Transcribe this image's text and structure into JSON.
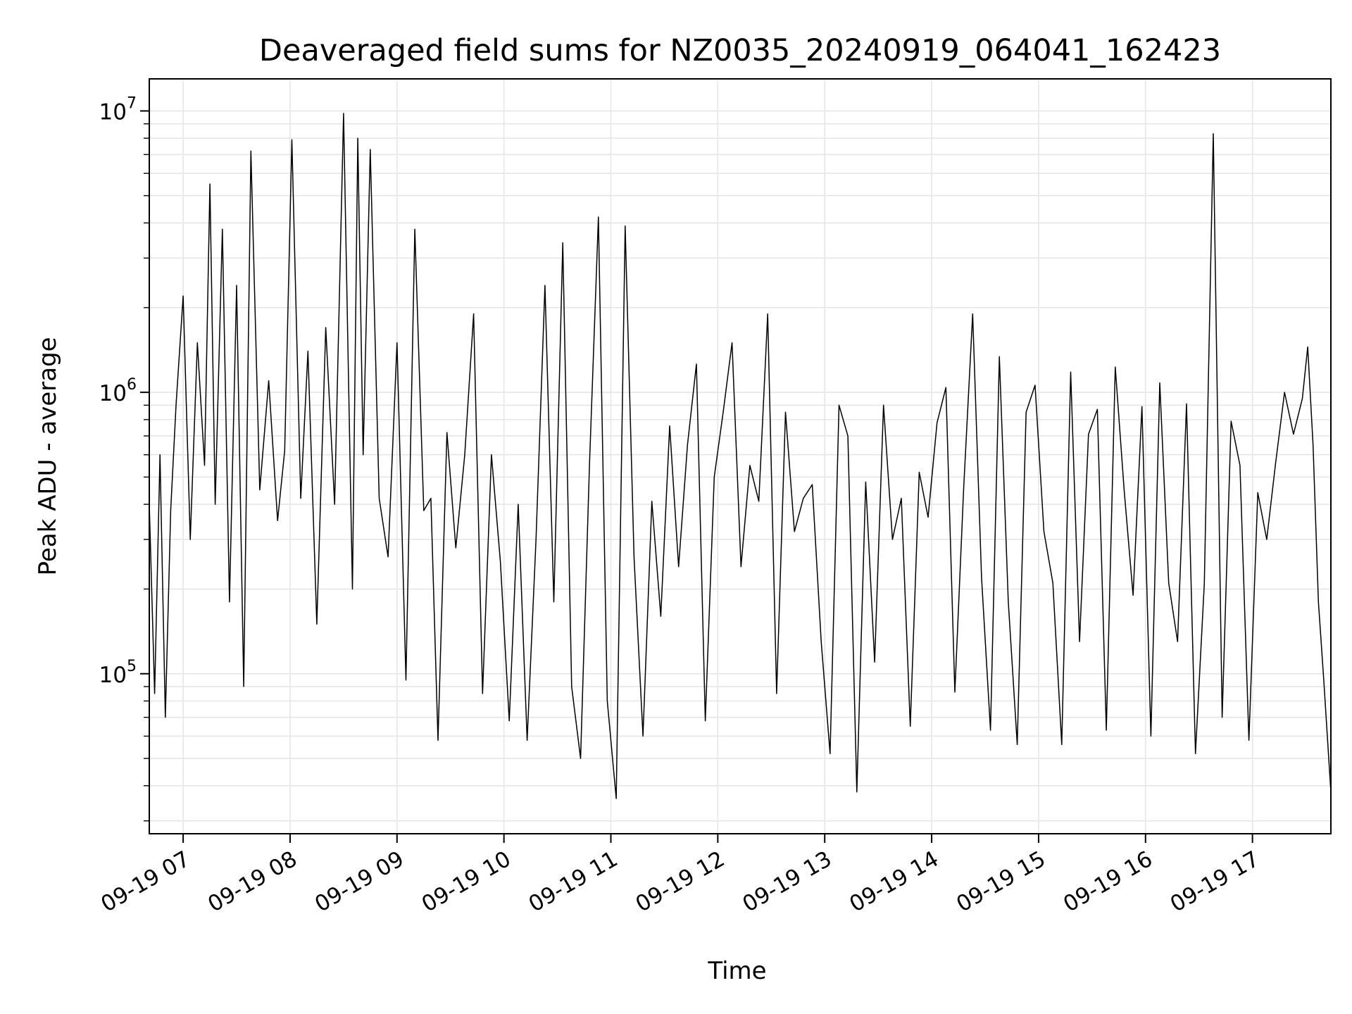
{
  "chart_data": {
    "type": "line",
    "title": "Deaveraged field sums for NZ0035_20240919_064041_162423",
    "xlabel": "Time",
    "ylabel": "Peak ADU - average",
    "yscale": "log",
    "ylim": [
      27000,
      13000000
    ],
    "xlim": [
      "2024-09-19 06:41",
      "2024-09-19 17:44"
    ],
    "grid": true,
    "line_color": "#000000",
    "grid_color": "#e6e6e6",
    "x_ticks": [
      {
        "label": "09-19 07",
        "value": "2024-09-19 07:00"
      },
      {
        "label": "09-19 08",
        "value": "2024-09-19 08:00"
      },
      {
        "label": "09-19 09",
        "value": "2024-09-19 09:00"
      },
      {
        "label": "09-19 10",
        "value": "2024-09-19 10:00"
      },
      {
        "label": "09-19 11",
        "value": "2024-09-19 11:00"
      },
      {
        "label": "09-19 12",
        "value": "2024-09-19 12:00"
      },
      {
        "label": "09-19 13",
        "value": "2024-09-19 13:00"
      },
      {
        "label": "09-19 14",
        "value": "2024-09-19 14:00"
      },
      {
        "label": "09-19 15",
        "value": "2024-09-19 15:00"
      },
      {
        "label": "09-19 16",
        "value": "2024-09-19 16:00"
      },
      {
        "label": "09-19 17",
        "value": "2024-09-19 17:00"
      }
    ],
    "y_ticks": [
      {
        "base": "10",
        "exp": "5",
        "value": 100000
      },
      {
        "base": "10",
        "exp": "6",
        "value": 1000000
      },
      {
        "base": "10",
        "exp": "7",
        "value": 10000000
      }
    ],
    "series": [
      {
        "x": [
          "2024-09-19 06:41",
          "2024-09-19 06:44",
          "2024-09-19 06:47",
          "2024-09-19 06:50",
          "2024-09-19 06:53",
          "2024-09-19 06:56",
          "2024-09-19 07:00",
          "2024-09-19 07:04",
          "2024-09-19 07:08",
          "2024-09-19 07:12",
          "2024-09-19 07:15",
          "2024-09-19 07:18",
          "2024-09-19 07:22",
          "2024-09-19 07:26",
          "2024-09-19 07:30",
          "2024-09-19 07:34",
          "2024-09-19 07:38",
          "2024-09-19 07:43",
          "2024-09-19 07:48",
          "2024-09-19 07:53",
          "2024-09-19 07:57",
          "2024-09-19 08:01",
          "2024-09-19 08:06",
          "2024-09-19 08:10",
          "2024-09-19 08:15",
          "2024-09-19 08:20",
          "2024-09-19 08:25",
          "2024-09-19 08:30",
          "2024-09-19 08:35",
          "2024-09-19 08:38",
          "2024-09-19 08:41",
          "2024-09-19 08:45",
          "2024-09-19 08:50",
          "2024-09-19 08:55",
          "2024-09-19 09:00",
          "2024-09-19 09:05",
          "2024-09-19 09:10",
          "2024-09-19 09:15",
          "2024-09-19 09:19",
          "2024-09-19 09:23",
          "2024-09-19 09:28",
          "2024-09-19 09:33",
          "2024-09-19 09:38",
          "2024-09-19 09:43",
          "2024-09-19 09:48",
          "2024-09-19 09:53",
          "2024-09-19 09:58",
          "2024-09-19 10:03",
          "2024-09-19 10:08",
          "2024-09-19 10:13",
          "2024-09-19 10:18",
          "2024-09-19 10:23",
          "2024-09-19 10:28",
          "2024-09-19 10:33",
          "2024-09-19 10:38",
          "2024-09-19 10:43",
          "2024-09-19 10:48",
          "2024-09-19 10:53",
          "2024-09-19 10:58",
          "2024-09-19 11:03",
          "2024-09-19 11:08",
          "2024-09-19 11:13",
          "2024-09-19 11:18",
          "2024-09-19 11:23",
          "2024-09-19 11:28",
          "2024-09-19 11:33",
          "2024-09-19 11:38",
          "2024-09-19 11:43",
          "2024-09-19 11:48",
          "2024-09-19 11:53",
          "2024-09-19 11:58",
          "2024-09-19 12:03",
          "2024-09-19 12:08",
          "2024-09-19 12:13",
          "2024-09-19 12:18",
          "2024-09-19 12:23",
          "2024-09-19 12:28",
          "2024-09-19 12:33",
          "2024-09-19 12:38",
          "2024-09-19 12:43",
          "2024-09-19 12:48",
          "2024-09-19 12:53",
          "2024-09-19 12:58",
          "2024-09-19 13:03",
          "2024-09-19 13:08",
          "2024-09-19 13:13",
          "2024-09-19 13:18",
          "2024-09-19 13:23",
          "2024-09-19 13:28",
          "2024-09-19 13:33",
          "2024-09-19 13:38",
          "2024-09-19 13:43",
          "2024-09-19 13:48",
          "2024-09-19 13:53",
          "2024-09-19 13:58",
          "2024-09-19 14:03",
          "2024-09-19 14:08",
          "2024-09-19 14:13",
          "2024-09-19 14:18",
          "2024-09-19 14:23",
          "2024-09-19 14:28",
          "2024-09-19 14:33",
          "2024-09-19 14:38",
          "2024-09-19 14:43",
          "2024-09-19 14:48",
          "2024-09-19 14:53",
          "2024-09-19 14:58",
          "2024-09-19 15:03",
          "2024-09-19 15:08",
          "2024-09-19 15:13",
          "2024-09-19 15:18",
          "2024-09-19 15:23",
          "2024-09-19 15:28",
          "2024-09-19 15:33",
          "2024-09-19 15:38",
          "2024-09-19 15:43",
          "2024-09-19 15:48",
          "2024-09-19 15:53",
          "2024-09-19 15:58",
          "2024-09-19 16:03",
          "2024-09-19 16:08",
          "2024-09-19 16:13",
          "2024-09-19 16:18",
          "2024-09-19 16:23",
          "2024-09-19 16:28",
          "2024-09-19 16:33",
          "2024-09-19 16:38",
          "2024-09-19 16:43",
          "2024-09-19 16:48",
          "2024-09-19 16:53",
          "2024-09-19 16:58",
          "2024-09-19 17:03",
          "2024-09-19 17:08",
          "2024-09-19 17:13",
          "2024-09-19 17:18",
          "2024-09-19 17:23",
          "2024-09-19 17:28",
          "2024-09-19 17:31",
          "2024-09-19 17:34",
          "2024-09-19 17:37",
          "2024-09-19 17:40",
          "2024-09-19 17:44"
        ],
        "values": [
          400000,
          85000,
          600000,
          70000,
          380000,
          900000,
          2200000,
          300000,
          1500000,
          550000,
          5500000,
          400000,
          3800000,
          180000,
          2400000,
          90000,
          7200000,
          450000,
          1100000,
          350000,
          620000,
          7900000,
          420000,
          1400000,
          150000,
          1700000,
          400000,
          9800000,
          200000,
          8000000,
          600000,
          7300000,
          420000,
          260000,
          1500000,
          95000,
          3800000,
          380000,
          420000,
          58000,
          720000,
          280000,
          600000,
          1900000,
          85000,
          600000,
          250000,
          68000,
          400000,
          58000,
          300000,
          2400000,
          180000,
          3400000,
          90000,
          50000,
          550000,
          4200000,
          80000,
          36000,
          3900000,
          260000,
          60000,
          410000,
          160000,
          760000,
          240000,
          650000,
          1260000,
          68000,
          500000,
          850000,
          1500000,
          240000,
          550000,
          410000,
          1900000,
          85000,
          850000,
          320000,
          420000,
          470000,
          130000,
          52000,
          900000,
          700000,
          38000,
          480000,
          110000,
          900000,
          300000,
          420000,
          65000,
          520000,
          360000,
          780000,
          1040000,
          86000,
          460000,
          1900000,
          220000,
          63000,
          1340000,
          180000,
          56000,
          850000,
          1060000,
          320000,
          210000,
          56000,
          1180000,
          130000,
          710000,
          870000,
          63000,
          1230000,
          450000,
          190000,
          890000,
          60000,
          1080000,
          210000,
          130000,
          910000,
          52000,
          210000,
          8300000,
          70000,
          790000,
          550000,
          58000,
          440000,
          300000,
          560000,
          1000000,
          710000,
          950000,
          1450000,
          650000,
          180000,
          95000,
          38000
        ]
      }
    ]
  }
}
